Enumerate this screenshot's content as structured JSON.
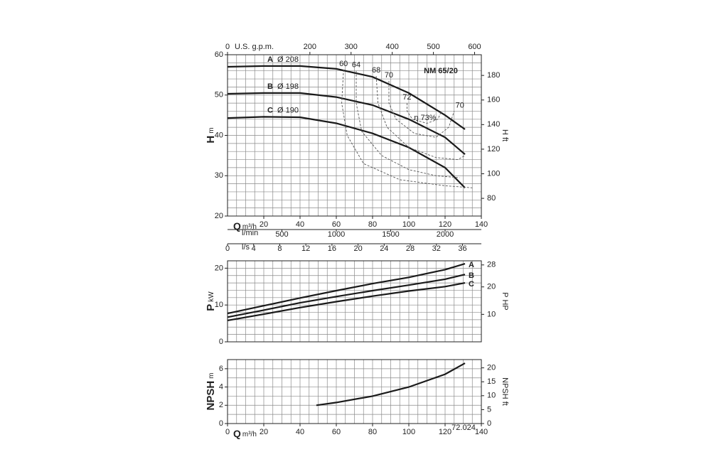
{
  "chart_data": [
    {
      "type": "line",
      "title": "NM 65/20",
      "ylabel": "H",
      "yunit": "m",
      "y2label": "H ft",
      "xlabel": "Q",
      "xunit": "m³/h",
      "x": [
        0,
        20,
        40,
        60,
        80,
        100,
        120,
        131
      ],
      "series": [
        {
          "name": "A",
          "label": "Ø 208",
          "color": "#1a1a1a",
          "values": [
            57,
            57.2,
            57.2,
            56.5,
            54.5,
            50.5,
            45,
            41.5
          ]
        },
        {
          "name": "B",
          "label": "Ø 198",
          "color": "#1a1a1a",
          "values": [
            50.3,
            50.5,
            50.5,
            49.5,
            47.5,
            44,
            39.5,
            35.3
          ]
        },
        {
          "name": "C",
          "label": "Ø 190",
          "color": "#1a1a1a",
          "values": [
            44.3,
            44.6,
            44.5,
            43,
            40.5,
            37,
            32,
            27
          ]
        }
      ],
      "name_position": "start",
      "xlim": [
        0,
        140
      ],
      "xticks": [
        20,
        40,
        60,
        80,
        100,
        120,
        140
      ],
      "ylim": [
        20,
        60
      ],
      "yticks": [
        20,
        30,
        40,
        50,
        60
      ],
      "y2lim": [
        65.617,
        196.85
      ],
      "y2ticks": [
        80,
        100,
        120,
        140,
        160,
        180
      ],
      "top_axis": {
        "label": "U.S. g.p.m.",
        "lim": [
          0,
          616.4
        ],
        "ticks": [
          0,
          200,
          300,
          400,
          500,
          600
        ]
      },
      "extra_axes": [
        {
          "label": "l/min",
          "lim": [
            0,
            2333.33
          ],
          "ticks": [
            500,
            1000,
            1500,
            2000
          ]
        },
        {
          "label": "l/s",
          "lim": [
            0,
            38.889
          ],
          "ticks": [
            0,
            4,
            8,
            12,
            16,
            20,
            24,
            28,
            32,
            36
          ]
        }
      ],
      "efficiency_contours": [
        {
          "labels": [
            "60"
          ],
          "x": [
            64,
            63,
            66,
            75,
            95,
            120,
            135
          ],
          "y": [
            56.3,
            48,
            40,
            33,
            29,
            27.5,
            27
          ]
        },
        {
          "labels": [
            "64"
          ],
          "x": [
            71,
            71,
            74,
            85,
            100,
            115,
            128
          ],
          "y": [
            56,
            48,
            41,
            35,
            31.5,
            30,
            29.5
          ]
        },
        {
          "labels": [
            "68"
          ],
          "x": [
            82,
            83,
            88,
            100,
            115,
            127,
            131
          ],
          "y": [
            54.7,
            48,
            42,
            37,
            34.5,
            34,
            35
          ]
        },
        {
          "labels": [
            "70",
            "70"
          ],
          "x": [
            89,
            89,
            93,
            103,
            115,
            122,
            125
          ],
          "y": [
            53.5,
            48,
            44,
            40.5,
            39.5,
            42,
            46
          ]
        },
        {
          "labels": [
            "72"
          ],
          "x": [
            99,
            99,
            102,
            110,
            116,
            118
          ],
          "y": [
            48,
            46,
            44,
            43,
            44,
            46
          ]
        }
      ],
      "annotations": [
        "η 73%"
      ],
      "grid": true,
      "xgrid": [
        0,
        5,
        10,
        15,
        20,
        25,
        30,
        35,
        40,
        45,
        50,
        55,
        60,
        65,
        70,
        75,
        80,
        85,
        90,
        95,
        100,
        105,
        110,
        115,
        120,
        125,
        130,
        135,
        140
      ],
      "ygrid": [
        20,
        22,
        24,
        26,
        28,
        30,
        32,
        34,
        36,
        38,
        40,
        42,
        44,
        46,
        48,
        50,
        52,
        54,
        56,
        58,
        60
      ]
    },
    {
      "type": "line",
      "ylabel": "P",
      "yunit": "kW",
      "y2label": "P HP",
      "x": [
        0,
        20,
        40,
        60,
        80,
        100,
        120,
        131
      ],
      "series": [
        {
          "name": "A",
          "color": "#1a1a1a",
          "values": [
            7.7,
            9.8,
            11.9,
            13.9,
            15.8,
            17.5,
            19.6,
            21.2
          ]
        },
        {
          "name": "B",
          "color": "#1a1a1a",
          "values": [
            6.7,
            8.6,
            10.6,
            12.3,
            13.9,
            15.4,
            17,
            18.3
          ]
        },
        {
          "name": "C",
          "color": "#1a1a1a",
          "values": [
            5.8,
            7.5,
            9.3,
            10.9,
            12.4,
            13.8,
            15,
            16
          ]
        }
      ],
      "name_position": "end",
      "xlim": [
        0,
        140
      ],
      "ylim": [
        0,
        22
      ],
      "yticks": [
        0,
        10,
        20
      ],
      "y2lim": [
        0,
        29.5
      ],
      "y2ticks": [
        10,
        20,
        28
      ],
      "grid": true,
      "xgrid": [
        0,
        5,
        10,
        15,
        20,
        25,
        30,
        35,
        40,
        45,
        50,
        55,
        60,
        65,
        70,
        75,
        80,
        85,
        90,
        95,
        100,
        105,
        110,
        115,
        120,
        125,
        130,
        135,
        140
      ],
      "ygrid": [
        0,
        2,
        4,
        6,
        8,
        10,
        12,
        14,
        16,
        18,
        20,
        22
      ]
    },
    {
      "type": "line",
      "ylabel": "NPSH",
      "yunit": "m",
      "y2label": "NPSH ft",
      "xlabel": "Q",
      "xunit": "m³/h",
      "x": [
        49,
        60,
        80,
        100,
        120,
        131
      ],
      "values": [
        2.0,
        2.3,
        3.0,
        4.0,
        5.4,
        6.6
      ],
      "color": "#1a1a1a",
      "xlim": [
        0,
        140
      ],
      "xticks": [
        0,
        20,
        40,
        60,
        80,
        100,
        120,
        140
      ],
      "ylim": [
        0,
        7
      ],
      "yticks": [
        0,
        2,
        4,
        6
      ],
      "y2lim": [
        0,
        22.966
      ],
      "y2ticks": [
        0,
        5,
        10,
        15,
        20
      ],
      "note": "72.024",
      "grid": true,
      "xgrid": [
        0,
        5,
        10,
        15,
        20,
        25,
        30,
        35,
        40,
        45,
        50,
        55,
        60,
        65,
        70,
        75,
        80,
        85,
        90,
        95,
        100,
        105,
        110,
        115,
        120,
        125,
        130,
        135,
        140
      ],
      "ygrid": [
        0,
        1,
        2,
        3,
        4,
        5,
        6,
        7
      ]
    }
  ]
}
